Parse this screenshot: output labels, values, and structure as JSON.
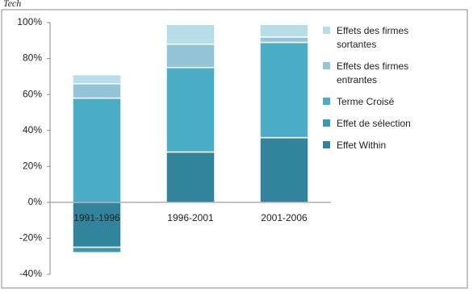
{
  "chart_data": {
    "type": "bar",
    "stacked": true,
    "title": "Tech",
    "categories": [
      "1991-1996",
      "1996-2001",
      "2001-2006"
    ],
    "series": [
      {
        "name": "Effet Within",
        "color": "#31849b",
        "values": [
          -25,
          28,
          36
        ]
      },
      {
        "name": "Effet de sélection",
        "color": "#3d97b0",
        "values": [
          -3,
          0,
          0
        ]
      },
      {
        "name": "Terme Croisé",
        "color": "#4bacc6",
        "values": [
          58,
          47,
          53
        ]
      },
      {
        "name": "Effets des firmes entrantes",
        "color": "#93c5d6",
        "values": [
          8,
          13,
          3
        ]
      },
      {
        "name": "Effets des firmes sortantes",
        "color": "#b7dde8",
        "values": [
          5,
          11,
          7
        ]
      }
    ],
    "ylim": [
      -40,
      100
    ],
    "yticks": [
      {
        "value": -40,
        "label": "-40%"
      },
      {
        "value": -20,
        "label": "-20%"
      },
      {
        "value": 0,
        "label": "0%"
      },
      {
        "value": 20,
        "label": "20%"
      },
      {
        "value": 40,
        "label": "40%"
      },
      {
        "value": 60,
        "label": "60%"
      },
      {
        "value": 80,
        "label": "80%"
      },
      {
        "value": 100,
        "label": "100%"
      }
    ],
    "grid": false,
    "legend": "right"
  }
}
